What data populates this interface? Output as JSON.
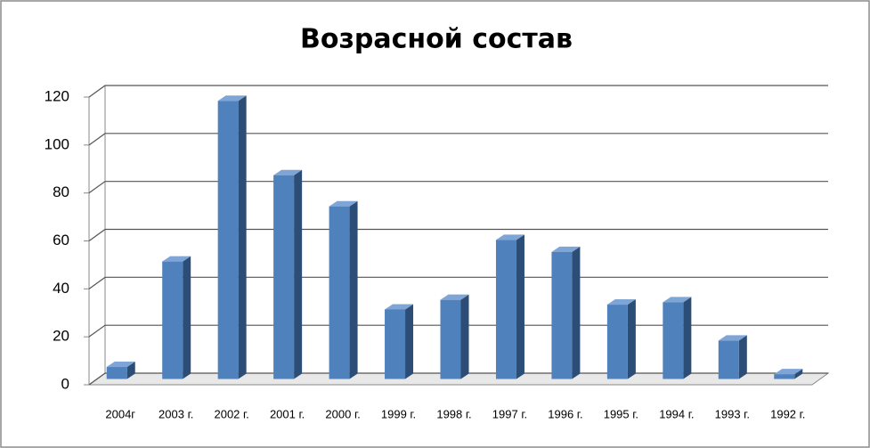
{
  "chart_data": {
    "type": "bar3d",
    "title": "Возрасной состав",
    "categories": [
      "2004г",
      "2003 г.",
      "2002 г.",
      "2001 г.",
      "2000 г.",
      "1999 г.",
      "1998 г.",
      "1997 г.",
      "1996 г.",
      "1995 г.",
      "1994 г.",
      "1993 г.",
      "1992 г."
    ],
    "values": [
      5,
      49,
      116,
      85,
      72,
      29,
      33,
      58,
      53,
      31,
      32,
      16,
      2
    ],
    "color": "#4f81bd",
    "ylim": [
      0,
      120
    ],
    "yticks": [
      0,
      20,
      40,
      60,
      80,
      100,
      120
    ],
    "grid": true
  }
}
